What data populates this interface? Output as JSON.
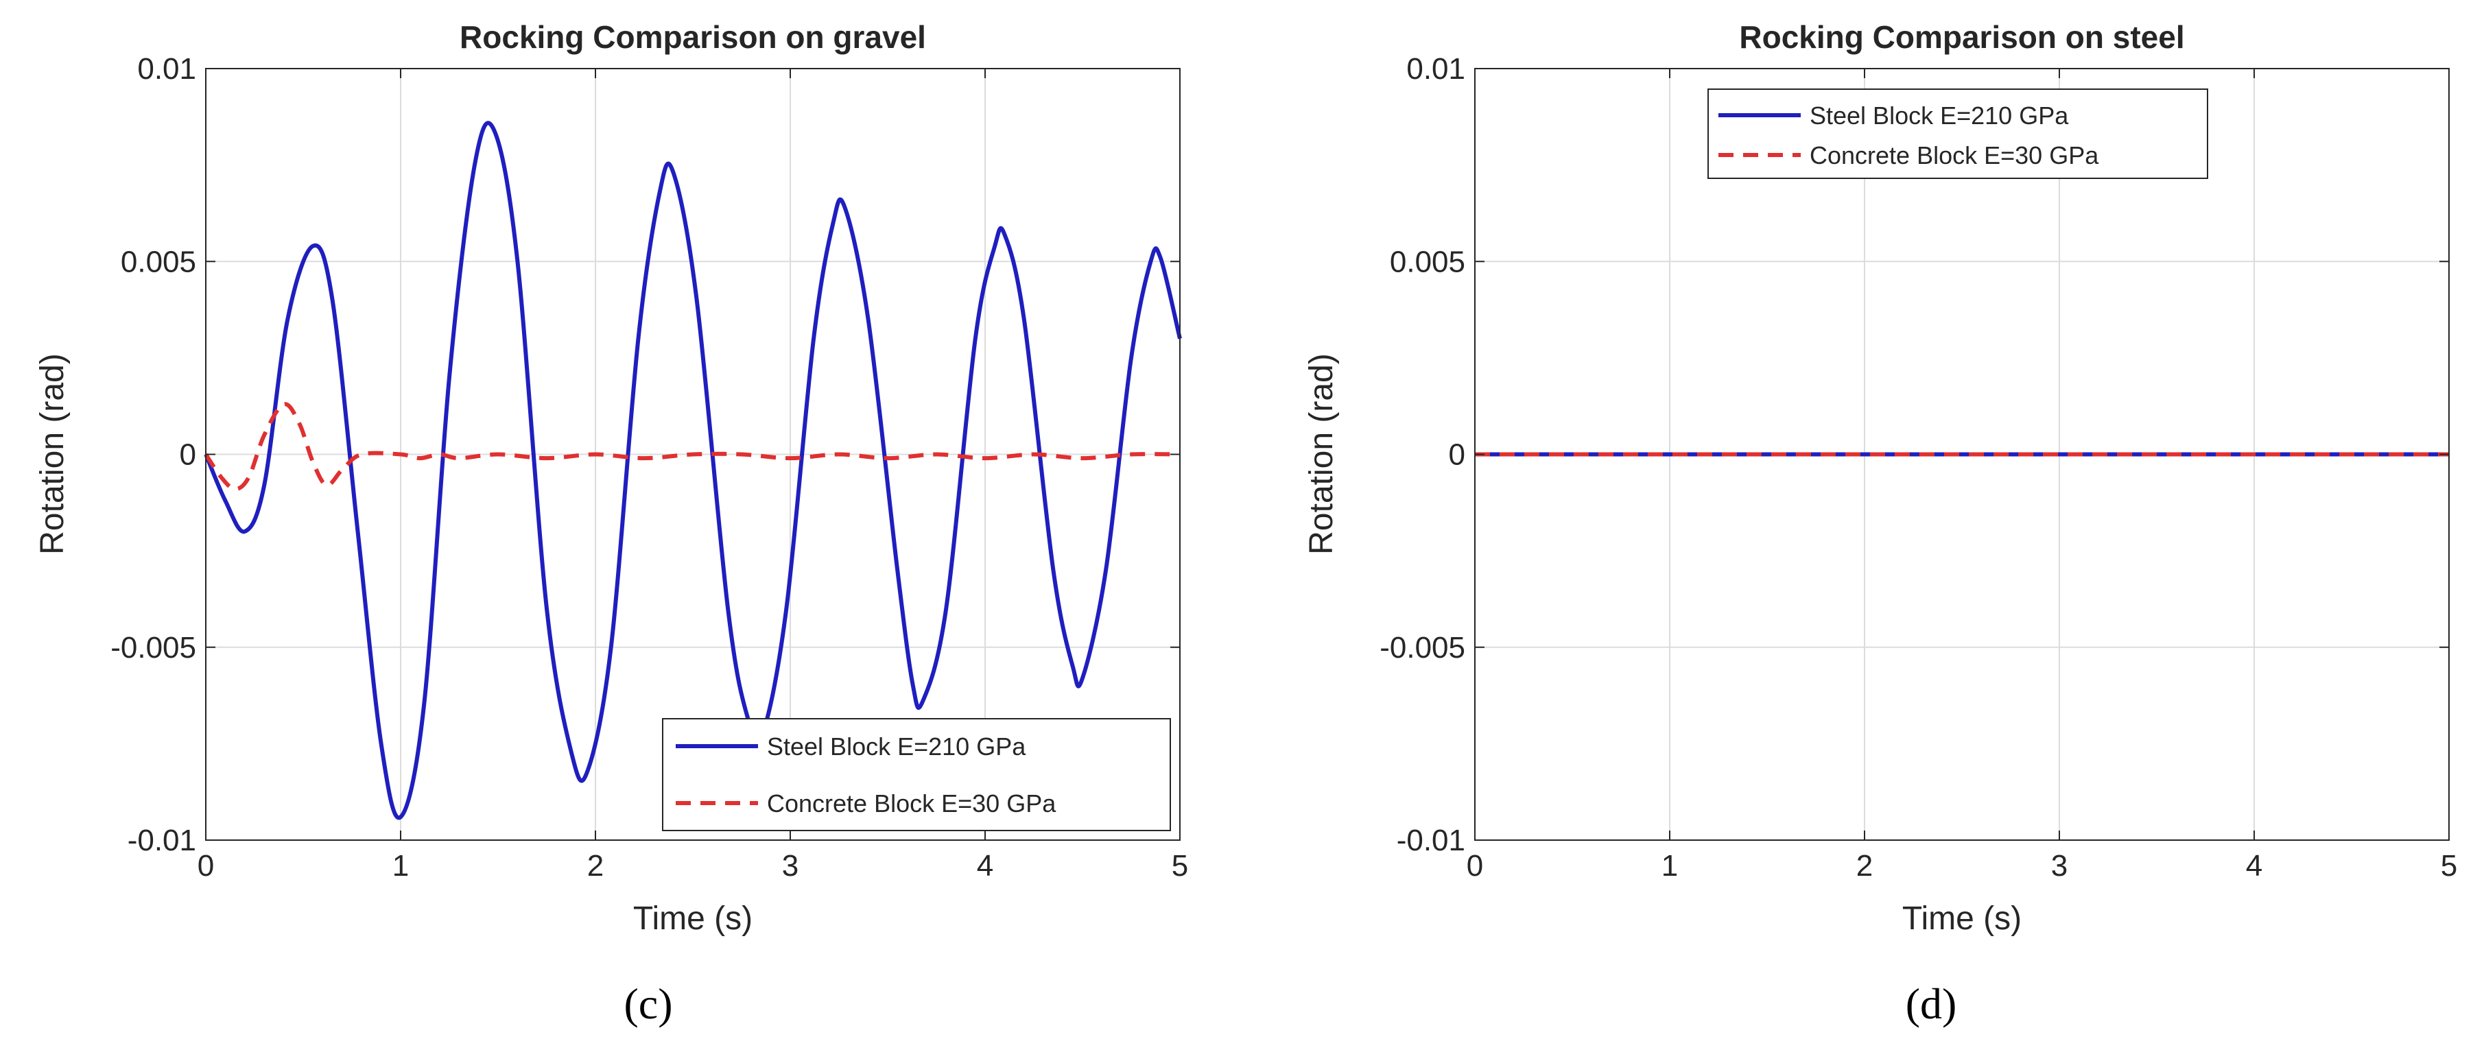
{
  "chart_data": [
    {
      "type": "line",
      "title": "Rocking Comparison on gravel",
      "xlabel": "Time (s)",
      "ylabel": "Rotation (rad)",
      "caption": "(c)",
      "xlim": [
        0,
        5
      ],
      "ylim": [
        -0.01,
        0.01
      ],
      "xticks": [
        "0",
        "1",
        "2",
        "3",
        "4",
        "5"
      ],
      "yticks": [
        "-0.01",
        "-0.005",
        "0",
        "0.005",
        "0.01"
      ],
      "grid": true,
      "legend_position": "bottom-right",
      "series": [
        {
          "name": "Steel Block E=210 GPa",
          "color": "#1f1fbf",
          "style": "solid",
          "points": [
            [
              0,
              0
            ],
            [
              0.1,
              -0.0012
            ],
            [
              0.2,
              -0.002
            ],
            [
              0.3,
              -0.0008
            ],
            [
              0.42,
              0.0035
            ],
            [
              0.55,
              0.0054
            ],
            [
              0.65,
              0.004
            ],
            [
              0.78,
              -0.002
            ],
            [
              0.9,
              -0.0075
            ],
            [
              1.0,
              -0.0094
            ],
            [
              1.12,
              -0.0065
            ],
            [
              1.25,
              0.002
            ],
            [
              1.38,
              0.0075
            ],
            [
              1.48,
              0.0084
            ],
            [
              1.6,
              0.005
            ],
            [
              1.75,
              -0.004
            ],
            [
              1.88,
              -0.0078
            ],
            [
              1.96,
              -0.0082
            ],
            [
              2.08,
              -0.005
            ],
            [
              2.22,
              0.003
            ],
            [
              2.33,
              0.0068
            ],
            [
              2.4,
              0.0073
            ],
            [
              2.52,
              0.004
            ],
            [
              2.68,
              -0.004
            ],
            [
              2.78,
              -0.0068
            ],
            [
              2.86,
              -0.0072
            ],
            [
              2.98,
              -0.004
            ],
            [
              3.12,
              0.003
            ],
            [
              3.22,
              0.006
            ],
            [
              3.28,
              0.0064
            ],
            [
              3.4,
              0.0035
            ],
            [
              3.55,
              -0.003
            ],
            [
              3.63,
              -0.006
            ],
            [
              3.68,
              -0.0064
            ],
            [
              3.8,
              -0.004
            ],
            [
              3.95,
              0.003
            ],
            [
              4.05,
              0.0054
            ],
            [
              4.1,
              0.0057
            ],
            [
              4.2,
              0.0035
            ],
            [
              4.35,
              -0.003
            ],
            [
              4.45,
              -0.0055
            ],
            [
              4.5,
              -0.0058
            ],
            [
              4.62,
              -0.003
            ],
            [
              4.75,
              0.0025
            ],
            [
              4.85,
              0.005
            ],
            [
              4.9,
              0.0051
            ],
            [
              5.0,
              0.003
            ]
          ]
        },
        {
          "name": "Concrete Block E=30 GPa",
          "color": "#e03030",
          "style": "dashed",
          "points": [
            [
              0,
              0
            ],
            [
              0.08,
              -0.0006
            ],
            [
              0.15,
              -0.0009
            ],
            [
              0.22,
              -0.0006
            ],
            [
              0.3,
              0.0005
            ],
            [
              0.4,
              0.0013
            ],
            [
              0.48,
              0.0008
            ],
            [
              0.55,
              -0.0002
            ],
            [
              0.62,
              -0.0008
            ],
            [
              0.7,
              -0.0004
            ],
            [
              0.8,
              0
            ],
            [
              1.0,
              0
            ],
            [
              1.1,
              -0.0001
            ],
            [
              1.2,
              0
            ],
            [
              1.3,
              -0.0001
            ],
            [
              1.5,
              0
            ],
            [
              1.75,
              -0.0001
            ],
            [
              2.0,
              0
            ],
            [
              2.25,
              -0.0001
            ],
            [
              2.5,
              0
            ],
            [
              2.75,
              0
            ],
            [
              3.0,
              -0.0001
            ],
            [
              3.25,
              0
            ],
            [
              3.5,
              -0.0001
            ],
            [
              3.75,
              0
            ],
            [
              4.0,
              -0.0001
            ],
            [
              4.25,
              0
            ],
            [
              4.5,
              -0.0001
            ],
            [
              4.75,
              0
            ],
            [
              5.0,
              0
            ]
          ]
        }
      ]
    },
    {
      "type": "line",
      "title": "Rocking Comparison on steel",
      "xlabel": "Time (s)",
      "ylabel": "Rotation (rad)",
      "caption": "(d)",
      "xlim": [
        0,
        5
      ],
      "ylim": [
        -0.01,
        0.01
      ],
      "xticks": [
        "0",
        "1",
        "2",
        "3",
        "4",
        "5"
      ],
      "yticks": [
        "-0.01",
        "-0.005",
        "0",
        "0.005",
        "0.01"
      ],
      "grid": true,
      "legend_position": "top-center",
      "series": [
        {
          "name": "Steel Block E=210 GPa",
          "color": "#1f1fbf",
          "style": "solid",
          "points": [
            [
              0,
              0
            ],
            [
              5,
              0
            ]
          ]
        },
        {
          "name": "Concrete Block E=30 GPa",
          "color": "#e03030",
          "style": "dashed",
          "points": [
            [
              0,
              0
            ],
            [
              5,
              0
            ]
          ]
        }
      ]
    }
  ]
}
